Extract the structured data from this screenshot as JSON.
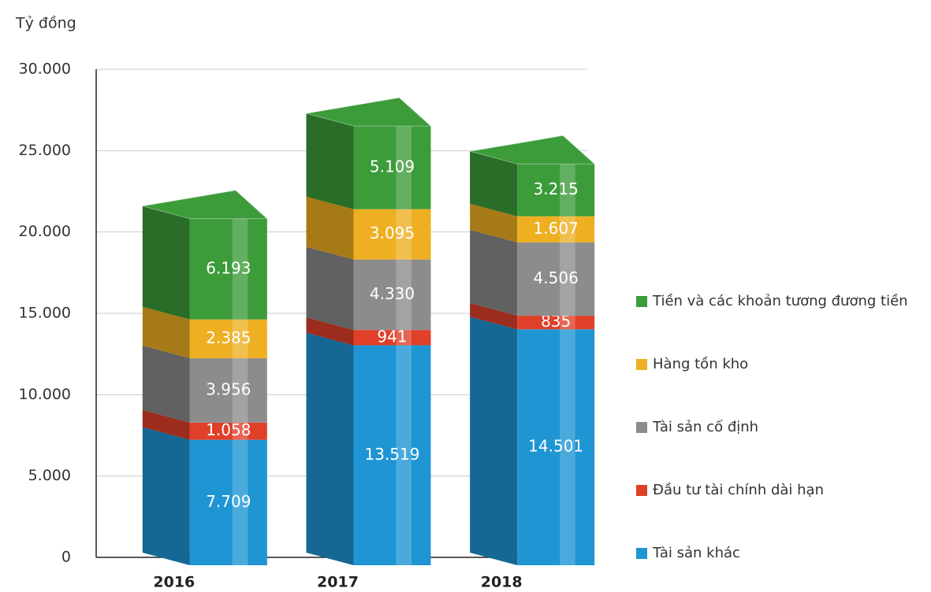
{
  "chart_data": {
    "type": "bar3d_stacked",
    "y_label": "Tỷ đồng",
    "categories": [
      "2016",
      "2017",
      "2018"
    ],
    "series": [
      {
        "name": "Tài sản khác",
        "color": "#1f95d4",
        "values": [
          7709,
          13519,
          14501
        ],
        "value_labels": [
          "7.709",
          "13.519",
          "14.501"
        ]
      },
      {
        "name": "Đầu tư tài chính dài hạn",
        "color": "#e0402a",
        "values": [
          1058,
          941,
          835
        ],
        "value_labels": [
          "1.058",
          "941",
          "835"
        ]
      },
      {
        "name": "Tài sản cố định",
        "color": "#8c8c8c",
        "values": [
          3956,
          4330,
          4506
        ],
        "value_labels": [
          "3.956",
          "4.330",
          "4.506"
        ]
      },
      {
        "name": "Hàng tồn kho",
        "color": "#eeb022",
        "values": [
          2385,
          3095,
          1607
        ],
        "value_labels": [
          "2.385",
          "3.095",
          "1.607"
        ]
      },
      {
        "name": "Tiền và các khoản tương đương tiền",
        "color": "#3c9c3a",
        "values": [
          6193,
          5109,
          3215
        ],
        "value_labels": [
          "6.193",
          "5.109",
          "3.215"
        ]
      }
    ],
    "ylim": [
      0,
      30000
    ],
    "yticks": [
      0,
      {
        "value": 5000,
        "label": "5.000"
      },
      {
        "value": 10000,
        "label": "10.000"
      },
      {
        "value": 15000,
        "label": "15.000"
      },
      {
        "value": 20000,
        "label": "20.000"
      },
      {
        "value": 25000,
        "label": "25.000"
      },
      {
        "value": 30000,
        "label": "30.000"
      }
    ],
    "grid": true
  }
}
